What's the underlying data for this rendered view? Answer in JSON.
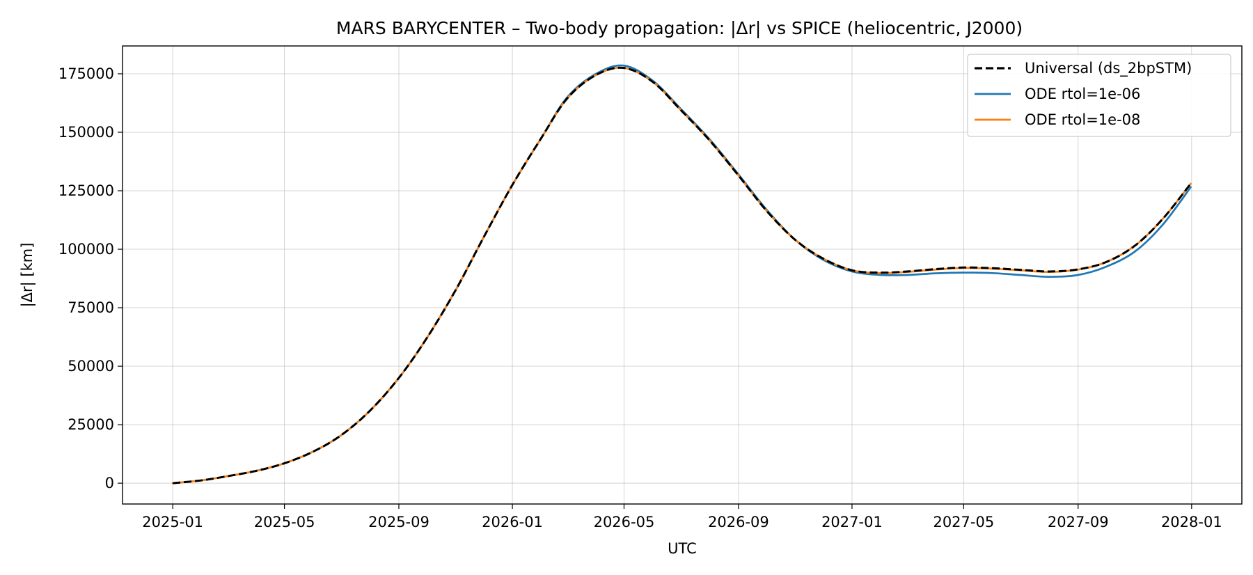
{
  "chart_data": {
    "type": "line",
    "title": "MARS BARYCENTER – Two-body propagation: |Δr| vs SPICE (heliocentric, J2000)",
    "xlabel": "UTC",
    "ylabel": "|Δr|  [km]",
    "x_is_date": true,
    "xlim": [
      "2024-11-08",
      "2028-02-24"
    ],
    "ylim": [
      -8900,
      186900
    ],
    "xticks": [
      "2025-01-01",
      "2025-05-01",
      "2025-09-01",
      "2026-01-01",
      "2026-05-01",
      "2026-09-01",
      "2027-01-01",
      "2027-05-01",
      "2027-09-01",
      "2028-01-01"
    ],
    "xtick_labels": [
      "2025-01",
      "2025-05",
      "2025-09",
      "2026-01",
      "2026-05",
      "2026-09",
      "2027-01",
      "2027-05",
      "2027-09",
      "2028-01"
    ],
    "yticks": [
      0,
      25000,
      50000,
      75000,
      100000,
      125000,
      150000,
      175000
    ],
    "ytick_labels": [
      "0",
      "25000",
      "50000",
      "75000",
      "100000",
      "125000",
      "150000",
      "175000"
    ],
    "grid": true,
    "legend_position": "top-right",
    "series": [
      {
        "name": "ODE rtol=1e-06",
        "color": "#1f77b4",
        "style": "solid",
        "x": [
          "2025-01-01",
          "2025-02-01",
          "2025-03-01",
          "2025-04-01",
          "2025-05-01",
          "2025-06-01",
          "2025-07-01",
          "2025-08-01",
          "2025-09-01",
          "2025-10-01",
          "2025-11-01",
          "2025-12-01",
          "2026-01-01",
          "2026-02-01",
          "2026-03-01",
          "2026-04-01",
          "2026-05-01",
          "2026-06-01",
          "2026-07-01",
          "2026-08-01",
          "2026-09-01",
          "2026-10-01",
          "2026-11-01",
          "2026-12-01",
          "2027-01-01",
          "2027-02-01",
          "2027-03-01",
          "2027-04-01",
          "2027-05-01",
          "2027-06-01",
          "2027-07-01",
          "2027-08-01",
          "2027-09-01",
          "2027-10-01",
          "2027-11-01",
          "2027-12-01",
          "2027-12-31"
        ],
        "y": [
          0,
          1200,
          3000,
          5300,
          8500,
          13500,
          20500,
          31000,
          45000,
          62000,
          82500,
          105000,
          127500,
          147500,
          165000,
          175000,
          178500,
          172000,
          160000,
          147000,
          132000,
          117000,
          104000,
          95500,
          90500,
          89000,
          89000,
          89700,
          90000,
          89800,
          89000,
          88200,
          89000,
          92500,
          99000,
          110500,
          126500
        ]
      },
      {
        "name": "ODE rtol=1e-08",
        "color": "#ff7f0e",
        "style": "solid",
        "x": [
          "2025-01-01",
          "2025-02-01",
          "2025-03-01",
          "2025-04-01",
          "2025-05-01",
          "2025-06-01",
          "2025-07-01",
          "2025-08-01",
          "2025-09-01",
          "2025-10-01",
          "2025-11-01",
          "2025-12-01",
          "2026-01-01",
          "2026-02-01",
          "2026-03-01",
          "2026-04-01",
          "2026-05-01",
          "2026-06-01",
          "2026-07-01",
          "2026-08-01",
          "2026-09-01",
          "2026-10-01",
          "2026-11-01",
          "2026-12-01",
          "2027-01-01",
          "2027-02-01",
          "2027-03-01",
          "2027-04-01",
          "2027-05-01",
          "2027-06-01",
          "2027-07-01",
          "2027-08-01",
          "2027-09-01",
          "2027-10-01",
          "2027-11-01",
          "2027-12-01",
          "2027-12-31"
        ],
        "y": [
          0,
          1200,
          3000,
          5300,
          8500,
          13500,
          20500,
          31000,
          45000,
          62000,
          82500,
          105000,
          127500,
          147500,
          164500,
          174500,
          177500,
          171500,
          159500,
          146500,
          131500,
          116500,
          104000,
          96000,
          91000,
          89800,
          90300,
          91300,
          92000,
          91700,
          91000,
          90300,
          91300,
          94500,
          101500,
          113000,
          128000
        ]
      },
      {
        "name": "Universal (ds_2bpSTM)",
        "color": "#000000",
        "style": "dashed",
        "x": [
          "2025-01-01",
          "2025-02-01",
          "2025-03-01",
          "2025-04-01",
          "2025-05-01",
          "2025-06-01",
          "2025-07-01",
          "2025-08-01",
          "2025-09-01",
          "2025-10-01",
          "2025-11-01",
          "2025-12-01",
          "2026-01-01",
          "2026-02-01",
          "2026-03-01",
          "2026-04-01",
          "2026-05-01",
          "2026-06-01",
          "2026-07-01",
          "2026-08-01",
          "2026-09-01",
          "2026-10-01",
          "2026-11-01",
          "2026-12-01",
          "2027-01-01",
          "2027-02-01",
          "2027-03-01",
          "2027-04-01",
          "2027-05-01",
          "2027-06-01",
          "2027-07-01",
          "2027-08-01",
          "2027-09-01",
          "2027-10-01",
          "2027-11-01",
          "2027-12-01",
          "2027-12-31"
        ],
        "y": [
          0,
          1200,
          3000,
          5300,
          8500,
          13500,
          20500,
          31000,
          45000,
          62000,
          82500,
          105000,
          127500,
          147500,
          164500,
          174500,
          177500,
          171500,
          159500,
          146500,
          131500,
          116500,
          104000,
          96000,
          91000,
          90000,
          90500,
          91500,
          92200,
          91900,
          91200,
          90500,
          91400,
          94500,
          101500,
          113000,
          128000
        ]
      }
    ]
  }
}
